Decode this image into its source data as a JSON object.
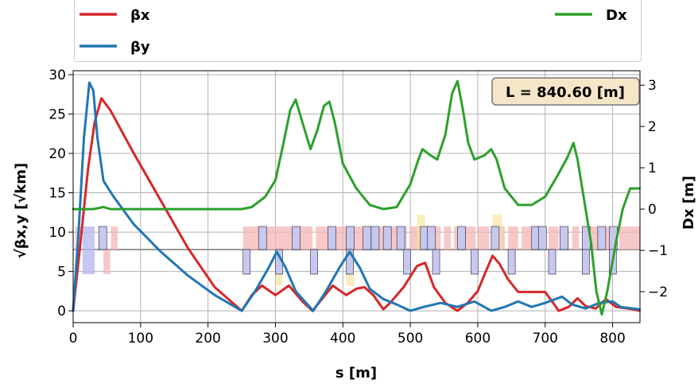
{
  "chart_data": {
    "type": "line",
    "xlabel": "s [m]",
    "ylabel": "√βx,y [√km]",
    "y2label": "Dx [m]",
    "xlim": [
      0,
      840.6
    ],
    "ylim": [
      -1.5,
      30.5
    ],
    "y2lim": [
      -2.75,
      3.35
    ],
    "xticks": [
      0,
      100,
      200,
      300,
      400,
      500,
      600,
      700,
      800
    ],
    "yticks": [
      0,
      5,
      10,
      15,
      20,
      25,
      30
    ],
    "y2ticks": [
      -2,
      -1,
      0,
      1,
      2,
      3
    ],
    "grid": true,
    "legend_position": "top",
    "annotation": "L = 840.60 [m]",
    "series": [
      {
        "name": "βx",
        "axis": "left",
        "color": "#d62728",
        "points": [
          [
            0,
            0
          ],
          [
            10,
            8
          ],
          [
            22,
            18
          ],
          [
            32,
            24
          ],
          [
            42,
            27
          ],
          [
            55,
            25.5
          ],
          [
            90,
            20
          ],
          [
            130,
            14
          ],
          [
            170,
            8
          ],
          [
            210,
            3
          ],
          [
            250,
            0
          ],
          [
            265,
            2
          ],
          [
            280,
            3.2
          ],
          [
            300,
            2
          ],
          [
            320,
            3.2
          ],
          [
            340,
            1.2
          ],
          [
            355,
            0
          ],
          [
            370,
            1.6
          ],
          [
            385,
            3.2
          ],
          [
            405,
            2
          ],
          [
            420,
            2.8
          ],
          [
            432,
            3
          ],
          [
            445,
            2
          ],
          [
            460,
            0.2
          ],
          [
            470,
            1
          ],
          [
            490,
            3
          ],
          [
            510,
            5.7
          ],
          [
            522,
            6.1
          ],
          [
            535,
            3
          ],
          [
            552,
            1
          ],
          [
            570,
            0
          ],
          [
            585,
            1
          ],
          [
            600,
            2.5
          ],
          [
            612,
            5
          ],
          [
            622,
            7
          ],
          [
            632,
            6
          ],
          [
            645,
            4
          ],
          [
            660,
            2.4
          ],
          [
            680,
            2.4
          ],
          [
            700,
            2.4
          ],
          [
            712,
            1
          ],
          [
            720,
            0
          ],
          [
            735,
            0.5
          ],
          [
            748,
            1.6
          ],
          [
            760,
            0.6
          ],
          [
            775,
            0.3
          ],
          [
            790,
            1.5
          ],
          [
            805,
            0.5
          ],
          [
            830,
            0.2
          ],
          [
            840,
            0
          ]
        ]
      },
      {
        "name": "βy",
        "axis": "left",
        "color": "#1f77b4",
        "points": [
          [
            0,
            0
          ],
          [
            8,
            10
          ],
          [
            16,
            22
          ],
          [
            24,
            29
          ],
          [
            30,
            28
          ],
          [
            36,
            22
          ],
          [
            45,
            16.5
          ],
          [
            60,
            14.5
          ],
          [
            90,
            11
          ],
          [
            130,
            7.5
          ],
          [
            170,
            4.5
          ],
          [
            210,
            2
          ],
          [
            250,
            0
          ],
          [
            270,
            2.5
          ],
          [
            290,
            5.5
          ],
          [
            302,
            7.5
          ],
          [
            315,
            5.5
          ],
          [
            330,
            2.5
          ],
          [
            356,
            0
          ],
          [
            375,
            2.5
          ],
          [
            395,
            5.5
          ],
          [
            410,
            7.5
          ],
          [
            425,
            5.5
          ],
          [
            440,
            2.8
          ],
          [
            460,
            1.5
          ],
          [
            480,
            0.8
          ],
          [
            500,
            0
          ],
          [
            520,
            0.5
          ],
          [
            545,
            1
          ],
          [
            570,
            0.5
          ],
          [
            595,
            1.2
          ],
          [
            620,
            0
          ],
          [
            640,
            0.5
          ],
          [
            660,
            1.2
          ],
          [
            680,
            0.5
          ],
          [
            700,
            1
          ],
          [
            725,
            1.8
          ],
          [
            740,
            0.8
          ],
          [
            760,
            0.3
          ],
          [
            780,
            1
          ],
          [
            800,
            1.2
          ],
          [
            812,
            0.5
          ],
          [
            840,
            0.2
          ]
        ]
      },
      {
        "name": "Dx",
        "axis": "right",
        "color": "#2ca02c",
        "points": [
          [
            0,
            0
          ],
          [
            30,
            0
          ],
          [
            45,
            0.05
          ],
          [
            55,
            0
          ],
          [
            250,
            0
          ],
          [
            265,
            0.05
          ],
          [
            285,
            0.3
          ],
          [
            300,
            0.7
          ],
          [
            312,
            1.6
          ],
          [
            322,
            2.4
          ],
          [
            330,
            2.65
          ],
          [
            340,
            2.1
          ],
          [
            352,
            1.45
          ],
          [
            362,
            1.9
          ],
          [
            372,
            2.5
          ],
          [
            380,
            2.6
          ],
          [
            388,
            2.1
          ],
          [
            400,
            1.1
          ],
          [
            420,
            0.5
          ],
          [
            440,
            0.1
          ],
          [
            460,
            0
          ],
          [
            480,
            0.05
          ],
          [
            500,
            0.6
          ],
          [
            512,
            1.2
          ],
          [
            518,
            1.45
          ],
          [
            530,
            1.3
          ],
          [
            540,
            1.2
          ],
          [
            552,
            1.8
          ],
          [
            562,
            2.8
          ],
          [
            570,
            3.1
          ],
          [
            578,
            2.4
          ],
          [
            586,
            1.6
          ],
          [
            595,
            1.2
          ],
          [
            610,
            1.3
          ],
          [
            620,
            1.45
          ],
          [
            628,
            1.2
          ],
          [
            640,
            0.5
          ],
          [
            660,
            0.1
          ],
          [
            680,
            0.1
          ],
          [
            700,
            0.3
          ],
          [
            718,
            0.8
          ],
          [
            733,
            1.25
          ],
          [
            742,
            1.6
          ],
          [
            748,
            1.2
          ],
          [
            760,
            0
          ],
          [
            768,
            -0.8
          ],
          [
            776,
            -2
          ],
          [
            784,
            -2.55
          ],
          [
            792,
            -2
          ],
          [
            805,
            -0.8
          ],
          [
            815,
            0
          ],
          [
            826,
            0.5
          ],
          [
            840,
            0.5
          ]
        ]
      }
    ]
  }
}
